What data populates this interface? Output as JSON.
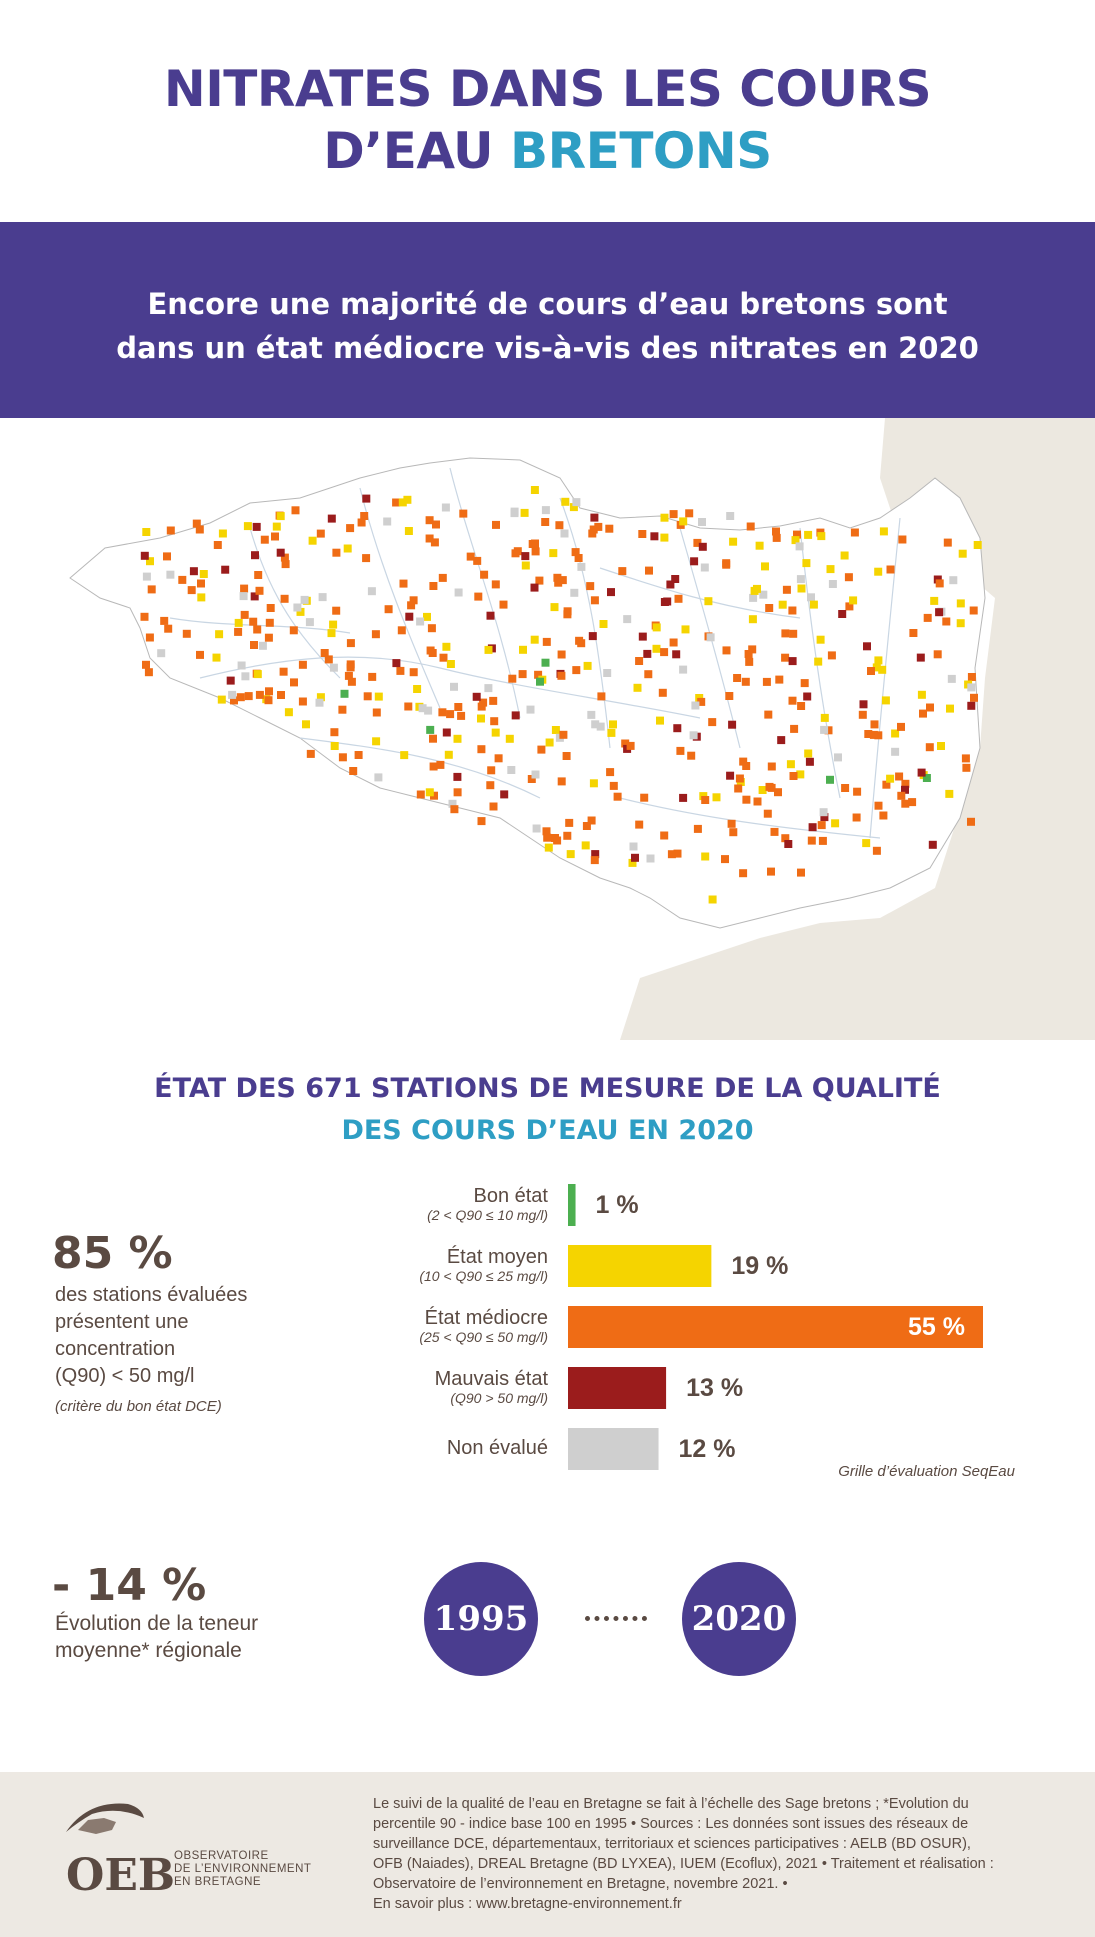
{
  "header": {
    "title_line1": "NITRATES DANS LES COURS",
    "title_line2_prefix": "D’EAU ",
    "title_line2_accent": "BRETONS"
  },
  "banner": {
    "line1": "Encore une majorité de cours d’eau bretons sont",
    "line2": "dans un état médiocre vis-à-vis des nitrates en 2020"
  },
  "colors": {
    "purple": "#4a3d8f",
    "blue": "#2e9ec4",
    "good": "#4caf50",
    "medium": "#f5d400",
    "poor": "#ef6c15",
    "bad": "#9b1c1c",
    "not_evaluated": "#cfcfcf"
  },
  "section": {
    "title_line1": "ÉTAT DES 671 STATIONS DE MESURE DE LA QUALITÉ",
    "title_line2": "DES COURS D’EAU EN 2020"
  },
  "stat_85": {
    "value": "85 %",
    "line1": "des stations évaluées",
    "line2": "présentent  une",
    "line3": "concentration",
    "line4": "(Q90) < 50 mg/l",
    "note": "(critère du bon état DCE)"
  },
  "chart_data": {
    "type": "bar",
    "orientation": "horizontal",
    "categories": [
      "Bon état",
      "État moyen",
      "État médiocre",
      "Mauvais état",
      "Non évalué"
    ],
    "sublabels": [
      "(2 < Q90 ≤ 10 mg/l)",
      "(10 < Q90 ≤ 25 mg/l)",
      "(25 < Q90 ≤  50 mg/l)",
      "(Q90 > 50 mg/l)",
      ""
    ],
    "values": [
      1,
      19,
      55,
      13,
      12
    ],
    "value_labels": [
      "1 %",
      "19 %",
      "55 %",
      "13 %",
      "12 %"
    ],
    "colors": [
      "#4caf50",
      "#f5d400",
      "#ef6c15",
      "#9b1c1c",
      "#cfcfcf"
    ],
    "xlim": [
      0,
      55
    ],
    "source_note": "Grille d’évaluation SeqEau"
  },
  "stat_14": {
    "value": "- 14 %",
    "line1": "Évolution de la teneur",
    "line2": "moyenne* régionale"
  },
  "years": {
    "from": "1995",
    "to": "2020"
  },
  "footer": {
    "lines": [
      "Le suivi de la qualité de l’eau en Bretagne se fait à l’échelle des Sage bretons  ; *Evolution du",
      "percentile 90 - indice base 100 en 1995 • Sources : Les données sont issues des réseaux de",
      "surveillance DCE, départementaux, territoriaux et sciences participatives : AELB (BD OSUR),",
      "OFB (Naiades), DREAL Bretagne (BD LYXEA), IUEM (Ecoflux), 2021 • Traitement et réalisation :",
      "Observatoire de l’environnement en Bretagne, novembre 2021. •",
      "En savoir plus : www.bretagne-environnement.fr"
    ],
    "logo_word": "OEB",
    "logo_lines": [
      "OBSERVATOIRE",
      "DE L’ENVIRONNEMENT",
      "EN BRETAGNE"
    ]
  }
}
